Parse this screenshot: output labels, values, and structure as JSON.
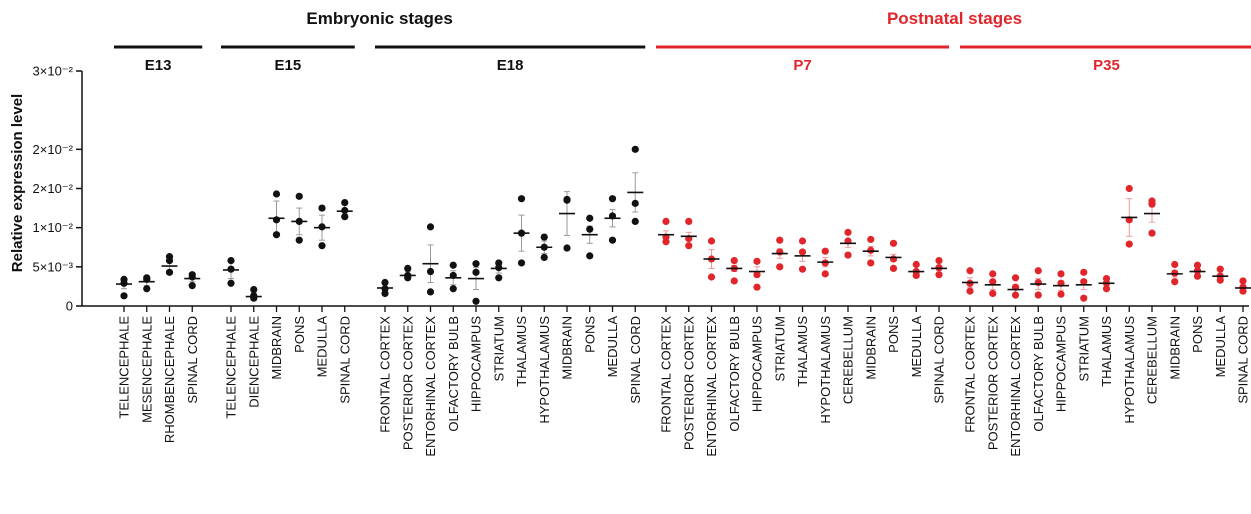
{
  "chart_data": {
    "type": "scatter",
    "ylabel": "Relative expression level",
    "ylim": [
      0,
      0.03
    ],
    "yticks": [
      {
        "value": 0,
        "label": "0"
      },
      {
        "value": 0.005,
        "label": "5×10⁻³"
      },
      {
        "value": 0.01,
        "label": "1×10⁻²"
      },
      {
        "value": 0.015,
        "label": "2×10⁻²"
      },
      {
        "value": 0.02,
        "label": "2×10⁻²"
      },
      {
        "value": 0.03,
        "label": "3×10⁻²"
      }
    ],
    "groups": [
      {
        "title": "Embryonic stages",
        "color": "#111111",
        "stages": [
          0,
          1,
          2
        ]
      },
      {
        "title": "Postnatal stages",
        "color": "#e0262b",
        "stages": [
          3,
          4
        ]
      }
    ],
    "stages": [
      {
        "label": "E13",
        "color": "#111111",
        "categories": [
          "TELENCEPHALE",
          "MESENCEPHALE",
          "RHOMBENCEPHALE",
          "SPINAL CORD"
        ],
        "mean": [
          0.0028,
          0.0031,
          0.0051,
          0.0035
        ],
        "sem": [
          0.0006,
          0.0005,
          0.0006,
          0.0004
        ],
        "points": [
          [
            0.0034,
            0.0029,
            0.0013
          ],
          [
            0.0036,
            0.0034,
            0.0022
          ],
          [
            0.0063,
            0.0058,
            0.0043
          ],
          [
            0.004,
            0.0037,
            0.0026
          ]
        ]
      },
      {
        "label": "E15",
        "color": "#111111",
        "categories": [
          "TELENCEPHALE",
          "DIENCEPHALE",
          "MIDBRAIN",
          "PONS",
          "MEDULLA",
          "SPINAL CORD"
        ],
        "mean": [
          0.0046,
          0.0012,
          0.0112,
          0.0108,
          0.01,
          0.0121
        ],
        "sem": [
          0.0011,
          0.0005,
          0.0022,
          0.0017,
          0.0016,
          0.0008
        ],
        "points": [
          [
            0.0058,
            0.0047,
            0.0029
          ],
          [
            0.0021,
            0.0013,
            0.001
          ],
          [
            0.0143,
            0.011,
            0.0091
          ],
          [
            0.014,
            0.0108,
            0.0084
          ],
          [
            0.0125,
            0.0101,
            0.0077
          ],
          [
            0.0132,
            0.0122,
            0.0114
          ]
        ]
      },
      {
        "label": "E18",
        "color": "#111111",
        "categories": [
          "FRONTAL CORTEX",
          "POSTERIOR CORTEX",
          "ENTORHINAL CORTEX",
          "OLFACTORY BULB",
          "HIPPOCAMPUS",
          "STRIATUM",
          "THALAMUS",
          "HYPOTHALAMUS",
          "MIDBRAIN",
          "PONS",
          "MEDULLA",
          "SPINAL CORD"
        ],
        "mean": [
          0.0023,
          0.0039,
          0.0054,
          0.0036,
          0.0035,
          0.0048,
          0.0093,
          0.0075,
          0.0118,
          0.0091,
          0.0112,
          0.0145
        ],
        "sem": [
          0.0004,
          0.0005,
          0.0024,
          0.0009,
          0.0014,
          0.0006,
          0.0023,
          0.0008,
          0.0028,
          0.0011,
          0.0011,
          0.0025
        ],
        "points": [
          [
            0.003,
            0.0022,
            0.0016
          ],
          [
            0.0048,
            0.0039,
            0.0036
          ],
          [
            0.0101,
            0.0044,
            0.0018
          ],
          [
            0.0052,
            0.0039,
            0.0022
          ],
          [
            0.0054,
            0.0043,
            0.0006
          ],
          [
            0.0055,
            0.0049,
            0.0036
          ],
          [
            0.0137,
            0.0093,
            0.0055
          ],
          [
            0.0088,
            0.0075,
            0.0062
          ],
          [
            0.0136,
            0.0135,
            0.0074
          ],
          [
            0.0112,
            0.0098,
            0.0064
          ],
          [
            0.0137,
            0.0115,
            0.0084
          ],
          [
            0.02,
            0.0131,
            0.0108
          ]
        ]
      },
      {
        "label": "P7",
        "color": "#e0262b",
        "categories": [
          "FRONTAL CORTEX",
          "POSTERIOR CORTEX",
          "ENTORHINAL CORTEX",
          "OLFACTORY BULB",
          "HIPPOCAMPUS",
          "STRIATUM",
          "THALAMUS",
          "HYPOTHALAMUS",
          "CEREBELLUM",
          "MIDBRAIN",
          "PONS",
          "MEDULLA",
          "SPINAL CORD"
        ],
        "mean": [
          0.0091,
          0.0089,
          0.006,
          0.0048,
          0.0044,
          0.0067,
          0.0064,
          0.0056,
          0.008,
          0.007,
          0.0062,
          0.0044,
          0.0048
        ],
        "sem": [
          0.0005,
          0.0005,
          0.0012,
          0.0004,
          0.0006,
          0.0006,
          0.0007,
          0.0006,
          0.0005,
          0.0006,
          0.0004,
          0.0002,
          0.0003
        ],
        "points": [
          [
            0.0108,
            0.0088,
            0.0082
          ],
          [
            0.0108,
            0.0086,
            0.0077
          ],
          [
            0.0083,
            0.006,
            0.0037
          ],
          [
            0.0058,
            0.0048,
            0.0032
          ],
          [
            0.0057,
            0.004,
            0.0024
          ],
          [
            0.0084,
            0.0069,
            0.005
          ],
          [
            0.0083,
            0.0069,
            0.0047
          ],
          [
            0.007,
            0.0055,
            0.0041
          ],
          [
            0.0094,
            0.0083,
            0.0065
          ],
          [
            0.0085,
            0.0071,
            0.0055
          ],
          [
            0.008,
            0.006,
            0.0048
          ],
          [
            0.0053,
            0.0044,
            0.0039
          ],
          [
            0.0058,
            0.0049,
            0.004
          ]
        ]
      },
      {
        "label": "P35",
        "color": "#e0262b",
        "categories": [
          "FRONTAL CORTEX",
          "POSTERIOR CORTEX",
          "ENTORHINAL CORTEX",
          "OLFACTORY BULB",
          "HIPPOCAMPUS",
          "STRIATUM",
          "THALAMUS",
          "HYPOTHALAMUS",
          "CEREBELLUM",
          "MIDBRAIN",
          "PONS",
          "MEDULLA",
          "SPINAL CORD"
        ],
        "mean": [
          0.003,
          0.0027,
          0.0021,
          0.0028,
          0.0026,
          0.0027,
          0.0029,
          0.0113,
          0.0118,
          0.0041,
          0.0044,
          0.0038,
          0.0023
        ],
        "sem": [
          0.0006,
          0.0006,
          0.0005,
          0.0007,
          0.0006,
          0.0006,
          0.0004,
          0.0024,
          0.0011,
          0.0004,
          0.0003,
          0.0004,
          0.0003
        ],
        "points": [
          [
            0.0045,
            0.0029,
            0.0019
          ],
          [
            0.0041,
            0.0031,
            0.0016
          ],
          [
            0.0036,
            0.0024,
            0.0014
          ],
          [
            0.0045,
            0.003,
            0.0014
          ],
          [
            0.0041,
            0.0029,
            0.0015
          ],
          [
            0.0043,
            0.0031,
            0.001
          ],
          [
            0.0035,
            0.0029,
            0.0022
          ],
          [
            0.015,
            0.011,
            0.0079
          ],
          [
            0.0134,
            0.013,
            0.0093
          ],
          [
            0.0053,
            0.0042,
            0.0031
          ],
          [
            0.0052,
            0.0045,
            0.0038
          ],
          [
            0.0047,
            0.0038,
            0.0033
          ],
          [
            0.0032,
            0.0024,
            0.0019
          ]
        ]
      }
    ]
  }
}
